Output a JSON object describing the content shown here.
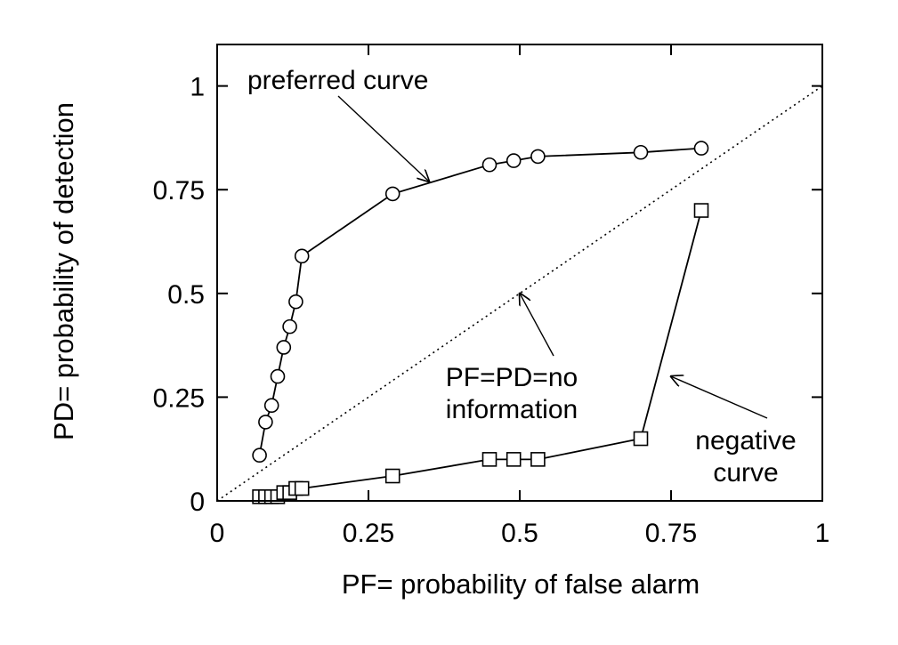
{
  "chart_data": {
    "type": "line",
    "title": "",
    "xlabel": "PF= probability of false alarm",
    "ylabel": "PD= probability of detection",
    "xlim": [
      0,
      1
    ],
    "ylim": [
      0,
      1.1
    ],
    "x_ticks": [
      {
        "value": 0,
        "label": "0"
      },
      {
        "value": 0.25,
        "label": "0.25"
      },
      {
        "value": 0.5,
        "label": "0.5"
      },
      {
        "value": 0.75,
        "label": "0.75"
      },
      {
        "value": 1,
        "label": "1"
      }
    ],
    "y_ticks": [
      {
        "value": 0,
        "label": "0"
      },
      {
        "value": 0.25,
        "label": "0.25"
      },
      {
        "value": 0.5,
        "label": "0.5"
      },
      {
        "value": 0.75,
        "label": "0.75"
      },
      {
        "value": 1,
        "label": "1"
      }
    ],
    "grid": false,
    "legend": "none",
    "series": [
      {
        "marker": "circle",
        "line": "solid",
        "points": [
          [
            0.07,
            0.11
          ],
          [
            0.08,
            0.19
          ],
          [
            0.09,
            0.23
          ],
          [
            0.1,
            0.3
          ],
          [
            0.11,
            0.37
          ],
          [
            0.12,
            0.42
          ],
          [
            0.13,
            0.48
          ],
          [
            0.14,
            0.59
          ],
          [
            0.29,
            0.74
          ],
          [
            0.45,
            0.81
          ],
          [
            0.49,
            0.82
          ],
          [
            0.53,
            0.83
          ],
          [
            0.7,
            0.84
          ],
          [
            0.8,
            0.85
          ]
        ]
      },
      {
        "marker": "square",
        "line": "solid",
        "points": [
          [
            0.07,
            0.01
          ],
          [
            0.08,
            0.01
          ],
          [
            0.09,
            0.01
          ],
          [
            0.1,
            0.01
          ],
          [
            0.11,
            0.02
          ],
          [
            0.12,
            0.02
          ],
          [
            0.13,
            0.03
          ],
          [
            0.14,
            0.03
          ],
          [
            0.29,
            0.06
          ],
          [
            0.45,
            0.1
          ],
          [
            0.49,
            0.1
          ],
          [
            0.53,
            0.1
          ],
          [
            0.7,
            0.15
          ],
          [
            0.8,
            0.7
          ]
        ]
      },
      {
        "marker": "none",
        "line": "dotted",
        "points": [
          [
            0,
            0
          ],
          [
            1,
            1
          ]
        ]
      }
    ],
    "annotations": [
      {
        "lines": [
          "preferred curve"
        ],
        "arrow_to": [
          0.35,
          0.77
        ]
      },
      {
        "lines": [
          "PF=PD=no",
          "information"
        ],
        "arrow_to": [
          0.5,
          0.5
        ]
      },
      {
        "lines": [
          "negative",
          "curve"
        ],
        "arrow_to": [
          0.75,
          0.3
        ]
      }
    ]
  }
}
